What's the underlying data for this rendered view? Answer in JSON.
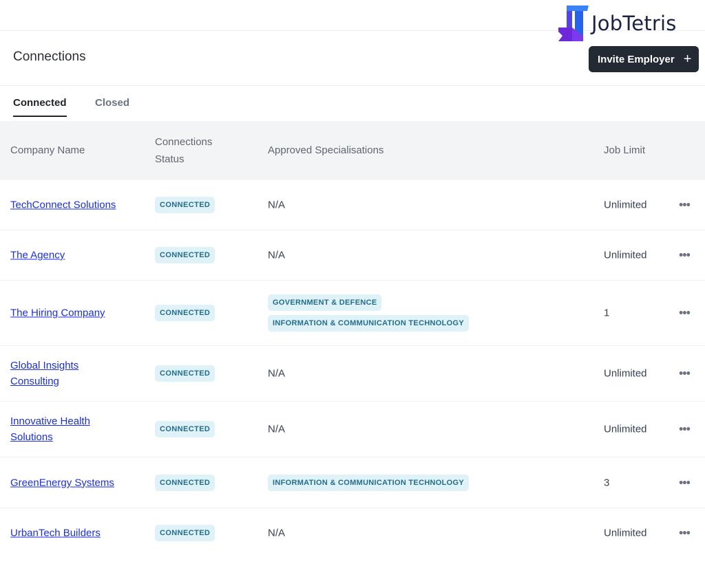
{
  "brand": {
    "name": "JobTetris",
    "icon": "jobtetris-logo-icon"
  },
  "page": {
    "title": "Connections"
  },
  "actions": {
    "invite_label": "Invite Employer",
    "invite_icon": "plus-icon"
  },
  "tabs": [
    {
      "label": "Connected",
      "active": true
    },
    {
      "label": "Closed",
      "active": false
    }
  ],
  "columns": {
    "company": "Company Name",
    "status": "Connections Status",
    "specialisations": "Approved Specialisations",
    "job_limit": "Job Limit"
  },
  "rows": [
    {
      "company": "TechConnect Solutions",
      "status": "CONNECTED",
      "specialisations": "N/A",
      "job_limit": "Unlimited",
      "actions": "•••"
    },
    {
      "company": "The Agency",
      "status": "CONNECTED",
      "specialisations": "N/A",
      "job_limit": "Unlimited",
      "actions": "•••"
    },
    {
      "company": "The Hiring Company",
      "status": "CONNECTED",
      "spec_tags": [
        "GOVERNMENT & DEFENCE",
        "INFORMATION & COMMUNICATION TECHNOLOGY"
      ],
      "job_limit": "1",
      "actions": "•••"
    },
    {
      "company": "Global Insights Consulting",
      "status": "CONNECTED",
      "specialisations": "N/A",
      "job_limit": "Unlimited",
      "actions": "•••"
    },
    {
      "company": "Innovative Health Solutions",
      "status": "CONNECTED",
      "specialisations": "N/A",
      "job_limit": "Unlimited",
      "actions": "•••"
    },
    {
      "company": "GreenEnergy Systems",
      "status": "CONNECTED",
      "spec_tags": [
        "INFORMATION & COMMUNICATION TECHNOLOGY"
      ],
      "job_limit": "3",
      "actions": "•••"
    },
    {
      "company": "UrbanTech Builders",
      "status": "CONNECTED",
      "specialisations": "N/A",
      "job_limit": "Unlimited",
      "actions": "•••"
    }
  ],
  "colors": {
    "primary_button": "#232a33",
    "link": "#1a2fd6",
    "badge_bg": "#dff2f8",
    "badge_text": "#236d8c",
    "header_bg": "#f3f4f6"
  }
}
